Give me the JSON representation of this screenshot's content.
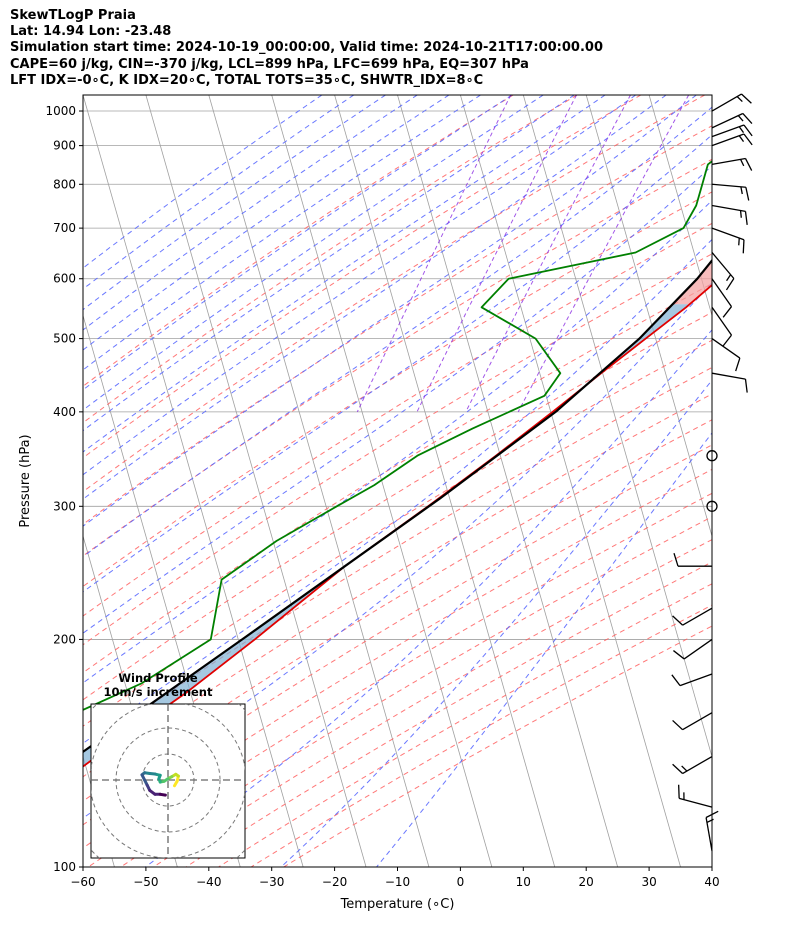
{
  "header": {
    "line1": "SkewTLogP Praia",
    "line2": "Lat: 14.94   Lon: -23.48",
    "line3": "Simulation start time: 2024-10-19_00:00:00, Valid time: 2024-10-21T17:00:00.00",
    "line4": "CAPE=60 j/kg, CIN=-370 j/kg, LCL=899 hPa, LFC=699 hPa, EQ=307 hPa",
    "line5": "LFT IDX=-0∘C, K IDX=20∘C, TOTAL TOTS=35∘C, SHWTR_IDX=8∘C"
  },
  "colors": {
    "temperature": "#e00000",
    "dewpoint": "#008000",
    "parcel": "#000000",
    "cape_fill": "#7fb0d4",
    "cin_fill": "#f4a0a0",
    "dry_adiabat": "#ff6060",
    "moist_adiabat": "#5060ff",
    "mixing_ratio": "#8a2be2",
    "isotherm": "#a0a0a0"
  },
  "chart_data": {
    "type": "skewT-logP",
    "xlabel": "Temperature (∘C)",
    "ylabel": "Pressure (hPa)",
    "xlim": [
      -60,
      40
    ],
    "ylim": [
      1050,
      100
    ],
    "x_ticks": [
      "−60",
      "−50",
      "−40",
      "−30",
      "−20",
      "−10",
      "0",
      "10",
      "20",
      "30",
      "40"
    ],
    "x_tick_values": [
      -60,
      -50,
      -40,
      -30,
      -20,
      -10,
      0,
      10,
      20,
      30,
      40
    ],
    "y_ticks": [
      "100",
      "200",
      "300",
      "400",
      "500",
      "600",
      "700",
      "800",
      "900",
      "1000"
    ],
    "y_tick_values": [
      100,
      200,
      300,
      400,
      500,
      600,
      700,
      800,
      900,
      1000
    ],
    "grid": true,
    "temperature_profile": [
      {
        "p": 1000,
        "t": 29
      },
      {
        "p": 950,
        "t": 26.5
      },
      {
        "p": 930,
        "t": 26
      },
      {
        "p": 900,
        "t": 27.5
      },
      {
        "p": 870,
        "t": 29
      },
      {
        "p": 850,
        "t": 28.5
      },
      {
        "p": 800,
        "t": 25
      },
      {
        "p": 700,
        "t": 19.5
      },
      {
        "p": 650,
        "t": 17
      },
      {
        "p": 600,
        "t": 14.5
      },
      {
        "p": 550,
        "t": 10.5
      },
      {
        "p": 500,
        "t": 5.5
      },
      {
        "p": 450,
        "t": 0
      },
      {
        "p": 400,
        "t": -6
      },
      {
        "p": 350,
        "t": -13
      },
      {
        "p": 300,
        "t": -21.5
      },
      {
        "p": 250,
        "t": -32
      },
      {
        "p": 200,
        "t": -43
      },
      {
        "p": 170,
        "t": -51.5
      },
      {
        "p": 150,
        "t": -59
      },
      {
        "p": 130,
        "t": -67
      },
      {
        "p": 115,
        "t": -73
      },
      {
        "p": 100,
        "t": -80
      }
    ],
    "dewpoint_profile": [
      {
        "p": 1000,
        "t": 21.5
      },
      {
        "p": 980,
        "t": 21
      },
      {
        "p": 950,
        "t": 17.5
      },
      {
        "p": 900,
        "t": 10.5
      },
      {
        "p": 850,
        "t": 7.5
      },
      {
        "p": 800,
        "t": 7.5
      },
      {
        "p": 750,
        "t": 7.5
      },
      {
        "p": 700,
        "t": 6.5
      },
      {
        "p": 650,
        "t": 0
      },
      {
        "p": 600,
        "t": -19
      },
      {
        "p": 550,
        "t": -22
      },
      {
        "p": 500,
        "t": -12
      },
      {
        "p": 450,
        "t": -6.5
      },
      {
        "p": 420,
        "t": -8
      },
      {
        "p": 380,
        "t": -18
      },
      {
        "p": 350,
        "t": -25.5
      },
      {
        "p": 320,
        "t": -31
      },
      {
        "p": 300,
        "t": -36
      },
      {
        "p": 270,
        "t": -44
      },
      {
        "p": 240,
        "t": -51
      },
      {
        "p": 200,
        "t": -50
      },
      {
        "p": 175,
        "t": -59
      },
      {
        "p": 160,
        "t": -68
      },
      {
        "p": 140,
        "t": -74
      },
      {
        "p": 120,
        "t": -74
      },
      {
        "p": 100,
        "t": -83
      }
    ],
    "parcel_profile": [
      {
        "p": 1000,
        "t": 29
      },
      {
        "p": 950,
        "t": 25.2
      },
      {
        "p": 899,
        "t": 21.5
      },
      {
        "p": 850,
        "t": 20.2
      },
      {
        "p": 800,
        "t": 18.7
      },
      {
        "p": 700,
        "t": 15.2
      },
      {
        "p": 600,
        "t": 11
      },
      {
        "p": 500,
        "t": 4.5
      },
      {
        "p": 400,
        "t": -5.5
      },
      {
        "p": 307,
        "t": -20
      },
      {
        "p": 250,
        "t": -32
      },
      {
        "p": 200,
        "t": -45
      },
      {
        "p": 150,
        "t": -62
      },
      {
        "p": 100,
        "t": -86
      }
    ],
    "wind_barbs": [
      {
        "p": 1000,
        "dir": 60,
        "spd": 15
      },
      {
        "p": 950,
        "dir": 65,
        "spd": 15
      },
      {
        "p": 925,
        "dir": 70,
        "spd": 15
      },
      {
        "p": 900,
        "dir": 70,
        "spd": 15
      },
      {
        "p": 850,
        "dir": 80,
        "spd": 15
      },
      {
        "p": 800,
        "dir": 95,
        "spd": 15
      },
      {
        "p": 750,
        "dir": 100,
        "spd": 15
      },
      {
        "p": 700,
        "dir": 110,
        "spd": 15
      },
      {
        "p": 650,
        "dir": 140,
        "spd": 15
      },
      {
        "p": 600,
        "dir": 145,
        "spd": 10
      },
      {
        "p": 550,
        "dir": 145,
        "spd": 10
      },
      {
        "p": 500,
        "dir": 125,
        "spd": 10
      },
      {
        "p": 450,
        "dir": 100,
        "spd": 10
      },
      {
        "p": 350,
        "dir": 0,
        "spd": 0
      },
      {
        "p": 300,
        "dir": 0,
        "spd": 0
      },
      {
        "p": 250,
        "dir": 270,
        "spd": 10
      },
      {
        "p": 220,
        "dir": 240,
        "spd": 10
      },
      {
        "p": 200,
        "dir": 235,
        "spd": 10
      },
      {
        "p": 180,
        "dir": 250,
        "spd": 10
      },
      {
        "p": 160,
        "dir": 240,
        "spd": 10
      },
      {
        "p": 140,
        "dir": 240,
        "spd": 15
      },
      {
        "p": 120,
        "dir": 285,
        "spd": 15
      },
      {
        "p": 105,
        "dir": 350,
        "spd": 15
      }
    ],
    "hodograph": {
      "title": "Wind Profile",
      "subtitle": "10m/s increment",
      "rings": [
        10,
        20,
        30,
        40
      ],
      "points": [
        {
          "u": 2.5,
          "v": -2.2
        },
        {
          "u": 3.5,
          "v": -0.5
        },
        {
          "u": 4,
          "v": 1.5
        },
        {
          "u": 3,
          "v": 2.2
        },
        {
          "u": 1.5,
          "v": 1.3
        },
        {
          "u": 0,
          "v": 0.5
        },
        {
          "u": -1.5,
          "v": -0.5
        },
        {
          "u": -3,
          "v": -0.8
        },
        {
          "u": -3.5,
          "v": 0.5
        },
        {
          "u": -3,
          "v": 1.8
        },
        {
          "u": -5,
          "v": 2.3
        },
        {
          "u": -7,
          "v": 2.5
        },
        {
          "u": -9,
          "v": 2.8
        },
        {
          "u": -10,
          "v": 2
        },
        {
          "u": -9,
          "v": 0
        },
        {
          "u": -8,
          "v": -2
        },
        {
          "u": -7,
          "v": -4
        },
        {
          "u": -5,
          "v": -5.5
        },
        {
          "u": -3,
          "v": -5.5
        },
        {
          "u": -1,
          "v": -5.8
        }
      ]
    }
  }
}
